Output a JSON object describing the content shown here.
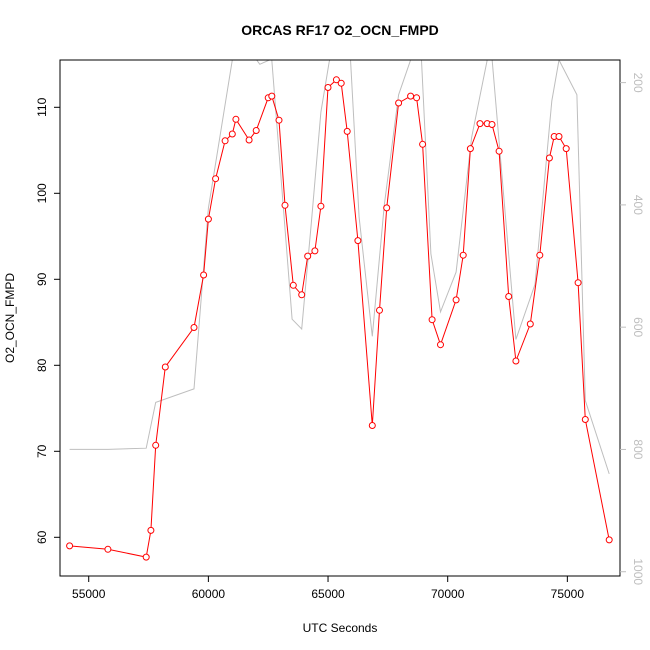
{
  "chart_data": {
    "type": "line",
    "title": "ORCAS RF17 O2_OCN_FMPD",
    "xlabel": "UTC Seconds",
    "ylabel": "O2_OCN_FMPD",
    "xlim": [
      53800,
      77200
    ],
    "ylim": [
      55.5,
      115.5
    ],
    "x_ticks": [
      55000,
      60000,
      65000,
      70000,
      75000
    ],
    "y_ticks": [
      60,
      70,
      80,
      90,
      100,
      110
    ],
    "secondary_axis": {
      "position": "right",
      "reversed": true,
      "ylim": [
        1007,
        163
      ],
      "ticks": [
        200,
        400,
        600,
        800,
        1000
      ],
      "color": "#bebebe"
    },
    "grid": false,
    "legend": "none",
    "series": [
      {
        "color": "#ff0000",
        "marker": "open-circle",
        "axis": "left",
        "x": [
          54200,
          55800,
          57400,
          57600,
          57800,
          58200,
          59400,
          59800,
          60000,
          60300,
          60700,
          61000,
          61150,
          61700,
          62000,
          62500,
          62650,
          62950,
          63200,
          63550,
          63900,
          64150,
          64450,
          64700,
          65000,
          65350,
          65550,
          65800,
          66250,
          66850,
          67150,
          67450,
          67950,
          68450,
          68700,
          68950,
          69350,
          69700,
          70350,
          70650,
          70950,
          71350,
          71650,
          71850,
          72150,
          72550,
          72850,
          73450,
          73850,
          74250,
          74450,
          74650,
          74950,
          75450,
          75750,
          76750
        ],
        "y": [
          59.0,
          58.6,
          57.7,
          60.8,
          70.7,
          79.8,
          84.4,
          90.5,
          97.0,
          101.7,
          106.1,
          106.9,
          108.6,
          106.2,
          107.3,
          111.1,
          111.3,
          108.5,
          98.6,
          89.3,
          88.2,
          92.7,
          93.3,
          98.5,
          112.3,
          113.2,
          112.8,
          107.2,
          94.5,
          73.0,
          86.4,
          98.3,
          110.5,
          111.3,
          111.1,
          105.7,
          85.3,
          82.4,
          87.6,
          92.8,
          105.2,
          108.1,
          108.1,
          108.0,
          104.9,
          88.0,
          80.5,
          84.8,
          92.8,
          104.1,
          106.6,
          106.6,
          105.2,
          89.6,
          73.7,
          59.7
        ]
      },
      {
        "color": "#bebebe",
        "marker": "none",
        "axis": "right",
        "x": [
          54200,
          55800,
          57400,
          57800,
          59400,
          60000,
          61000,
          61500,
          62150,
          62550,
          62650,
          63500,
          63900,
          64300,
          64700,
          65050,
          65350,
          65600,
          65900,
          66300,
          66850,
          67350,
          67950,
          68450,
          68900,
          69300,
          69700,
          70350,
          71000,
          71650,
          71850,
          72850,
          73650,
          74350,
          74650,
          75400,
          75750,
          76750
        ],
        "y": [
          800,
          800,
          798,
          723,
          701,
          405,
          163,
          135,
          170,
          163,
          163,
          587,
          603,
          430,
          248,
          166,
          130,
          100,
          135,
          420,
          615,
          400,
          220,
          163,
          160,
          480,
          575,
          510,
          290,
          163,
          160,
          620,
          530,
          230,
          163,
          220,
          720,
          840
        ]
      }
    ]
  }
}
